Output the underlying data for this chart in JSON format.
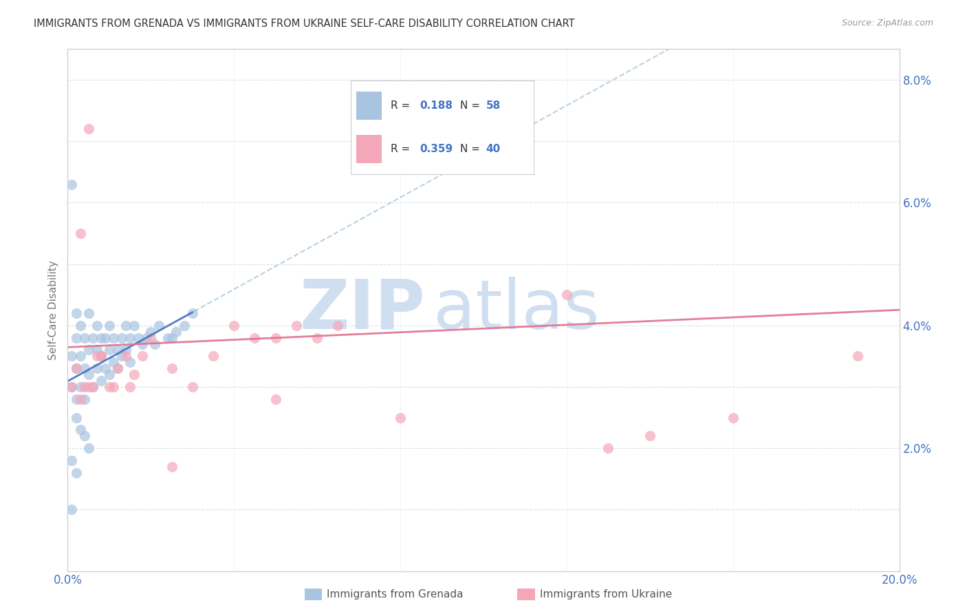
{
  "title": "IMMIGRANTS FROM GRENADA VS IMMIGRANTS FROM UKRAINE SELF-CARE DISABILITY CORRELATION CHART",
  "source": "Source: ZipAtlas.com",
  "ylabel": "Self-Care Disability",
  "xlim": [
    0.0,
    0.2
  ],
  "ylim": [
    0.0,
    0.085
  ],
  "grenada_R": 0.188,
  "grenada_N": 58,
  "ukraine_R": 0.359,
  "ukraine_N": 40,
  "grenada_color": "#a8c4e0",
  "ukraine_color": "#f4a7b9",
  "grenada_line_color": "#4472c4",
  "ukraine_line_color": "#e07090",
  "grenada_dashed_color": "#8ab4cc",
  "legend_text_color": "#4472c4",
  "watermark_color": "#d0dff0",
  "background_color": "#ffffff",
  "grid_color": "#d8dde6",
  "title_color": "#333333",
  "axis_color": "#cccccc",
  "grenada_x": [
    0.001,
    0.001,
    0.001,
    0.002,
    0.002,
    0.002,
    0.002,
    0.003,
    0.003,
    0.003,
    0.004,
    0.004,
    0.004,
    0.005,
    0.005,
    0.005,
    0.006,
    0.006,
    0.007,
    0.007,
    0.007,
    0.008,
    0.008,
    0.008,
    0.009,
    0.009,
    0.01,
    0.01,
    0.01,
    0.011,
    0.011,
    0.012,
    0.012,
    0.013,
    0.013,
    0.014,
    0.014,
    0.015,
    0.015,
    0.016,
    0.017,
    0.018,
    0.019,
    0.02,
    0.021,
    0.022,
    0.024,
    0.025,
    0.026,
    0.028,
    0.03,
    0.001,
    0.002,
    0.003,
    0.004,
    0.005,
    0.001,
    0.002
  ],
  "grenada_y": [
    0.035,
    0.03,
    0.01,
    0.033,
    0.028,
    0.038,
    0.042,
    0.035,
    0.03,
    0.04,
    0.033,
    0.038,
    0.028,
    0.032,
    0.036,
    0.042,
    0.03,
    0.038,
    0.033,
    0.036,
    0.04,
    0.031,
    0.035,
    0.038,
    0.033,
    0.038,
    0.032,
    0.036,
    0.04,
    0.034,
    0.038,
    0.033,
    0.036,
    0.035,
    0.038,
    0.036,
    0.04,
    0.034,
    0.038,
    0.04,
    0.038,
    0.037,
    0.038,
    0.039,
    0.037,
    0.04,
    0.038,
    0.038,
    0.039,
    0.04,
    0.042,
    0.063,
    0.025,
    0.023,
    0.022,
    0.02,
    0.018,
    0.016
  ],
  "ukraine_x": [
    0.001,
    0.002,
    0.003,
    0.004,
    0.005,
    0.006,
    0.007,
    0.008,
    0.01,
    0.011,
    0.012,
    0.014,
    0.016,
    0.018,
    0.02,
    0.025,
    0.03,
    0.035,
    0.04,
    0.045,
    0.05,
    0.055,
    0.06,
    0.065,
    0.07,
    0.08,
    0.09,
    0.1,
    0.12,
    0.14,
    0.16,
    0.19,
    0.003,
    0.008,
    0.015,
    0.025,
    0.05,
    0.08,
    0.005,
    0.13
  ],
  "ukraine_y": [
    0.03,
    0.033,
    0.028,
    0.03,
    0.03,
    0.03,
    0.035,
    0.035,
    0.03,
    0.03,
    0.033,
    0.035,
    0.032,
    0.035,
    0.038,
    0.033,
    0.03,
    0.035,
    0.04,
    0.038,
    0.038,
    0.04,
    0.038,
    0.04,
    0.072,
    0.068,
    0.073,
    0.075,
    0.045,
    0.022,
    0.025,
    0.035,
    0.055,
    0.035,
    0.03,
    0.017,
    0.028,
    0.025,
    0.072,
    0.02
  ]
}
